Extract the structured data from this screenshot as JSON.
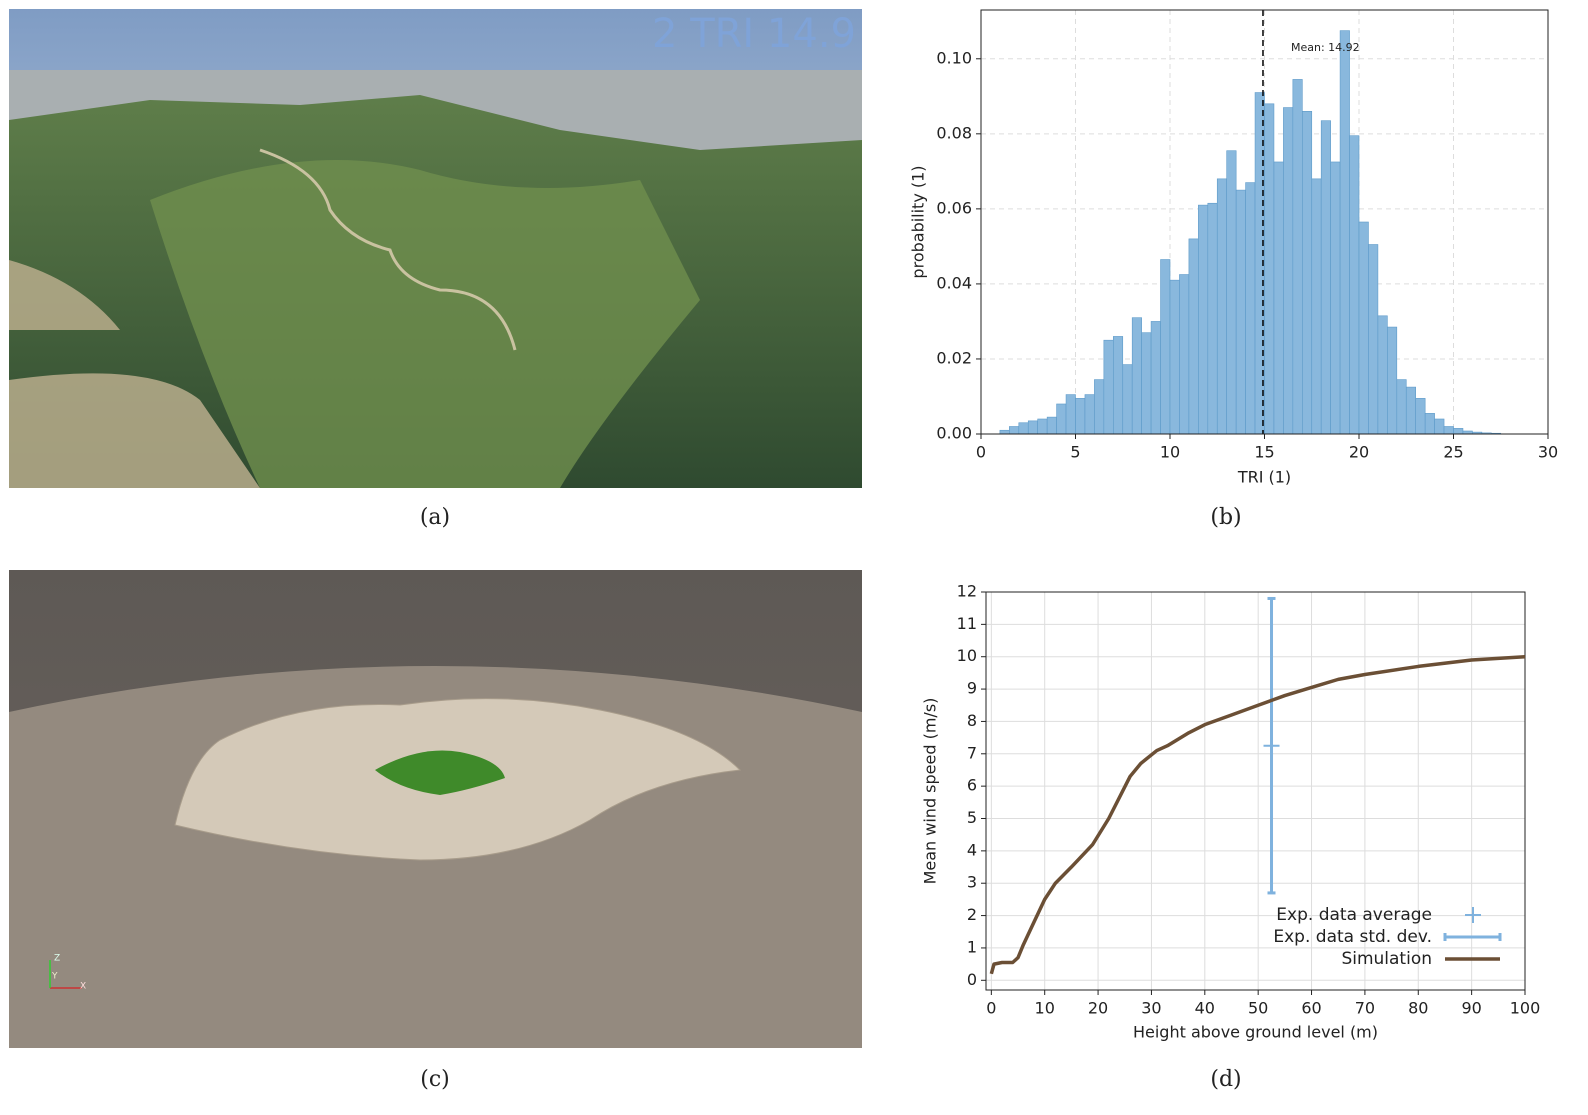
{
  "chart_data": [
    {
      "type": "histogram",
      "xlabel": "TRI (1)",
      "ylabel": "probability (1)",
      "color": "#89b8dd",
      "edgecolor": "#5d9ac9",
      "bins": [
        1.0,
        1.5,
        2.0,
        2.5,
        3.0,
        3.5,
        4.0,
        4.5,
        5.0,
        5.5,
        6.0,
        6.5,
        7.0,
        7.5,
        8.0,
        8.5,
        9.0,
        9.5,
        10.0,
        10.5,
        11.0,
        11.5,
        12.0,
        12.5,
        13.0,
        13.5,
        14.0,
        14.5,
        15.0,
        15.5,
        16.0,
        16.5,
        17.0,
        17.5,
        18.0,
        18.5,
        19.0,
        19.5,
        20.0,
        20.5,
        21.0,
        21.5,
        22.0,
        22.5,
        23.0,
        23.5,
        24.0,
        24.5,
        25.0,
        25.5,
        26.0,
        26.5,
        27.0,
        27.5
      ],
      "values": [
        0.001,
        0.002,
        0.003,
        0.0035,
        0.004,
        0.0045,
        0.008,
        0.0105,
        0.0095,
        0.0105,
        0.0145,
        0.025,
        0.026,
        0.0185,
        0.031,
        0.027,
        0.03,
        0.0465,
        0.041,
        0.0425,
        0.052,
        0.061,
        0.0615,
        0.068,
        0.0755,
        0.065,
        0.067,
        0.091,
        0.088,
        0.0725,
        0.087,
        0.0945,
        0.086,
        0.068,
        0.0835,
        0.0725,
        0.1075,
        0.0795,
        0.0565,
        0.0505,
        0.0315,
        0.0285,
        0.0145,
        0.0125,
        0.0095,
        0.0055,
        0.004,
        0.002,
        0.0015,
        0.0008,
        0.0005,
        0.0003,
        0.0002
      ],
      "mean": 14.92,
      "annotation": "Mean: 14.92",
      "xlim": [
        0,
        30
      ],
      "ylim": [
        0,
        0.113
      ],
      "xticks": [
        0,
        5,
        10,
        15,
        20,
        25,
        30
      ],
      "yticks": [
        {
          "value": 0,
          "label": "0.00"
        },
        {
          "value": 0.02,
          "label": "0.02"
        },
        {
          "value": 0.04,
          "label": "0.04"
        },
        {
          "value": 0.06,
          "label": "0.06"
        },
        {
          "value": 0.08,
          "label": "0.08"
        },
        {
          "value": 0.1,
          "label": "0.10"
        }
      ],
      "grid": true
    },
    {
      "type": "line",
      "xlabel": "Height above ground level (m)",
      "ylabel": "Mean wind speed (m/s)",
      "xlim": [
        -1,
        100
      ],
      "ylim": [
        -0.3,
        12
      ],
      "xticks": [
        0,
        10,
        20,
        30,
        40,
        50,
        60,
        70,
        80,
        90,
        100
      ],
      "yticks": [
        0,
        1,
        2,
        3,
        4,
        5,
        6,
        7,
        8,
        9,
        10,
        11,
        12
      ],
      "grid": true,
      "legend": "lower-right",
      "series": [
        {
          "name": "Exp. data average",
          "color": "#7fb2de",
          "marker": "cross",
          "x": [
            52.5
          ],
          "values": [
            7.25
          ]
        },
        {
          "name": "Exp. data std. dev.",
          "color": "#7fb2de",
          "marker": "errorbar",
          "x": [
            52.5
          ],
          "values": [
            7.25
          ],
          "errors": [
            4.55
          ]
        },
        {
          "name": "Simulation",
          "color": "#6b4f35",
          "marker": "line",
          "x": [
            0,
            0.5,
            2,
            4,
            5,
            6,
            8,
            10,
            12,
            15,
            19,
            22,
            26,
            28,
            31,
            33,
            37,
            40,
            45,
            50,
            55,
            60,
            65,
            70,
            80,
            90,
            100
          ],
          "values": [
            0.2,
            0.5,
            0.55,
            0.55,
            0.7,
            1.1,
            1.8,
            2.5,
            3.0,
            3.5,
            4.2,
            5.0,
            6.3,
            6.7,
            7.1,
            7.25,
            7.65,
            7.9,
            8.2,
            8.5,
            8.8,
            9.05,
            9.3,
            9.45,
            9.7,
            9.9,
            10.0
          ]
        }
      ]
    }
  ],
  "photo_overlay": "2 TRI 14.9",
  "render_axes": [
    "Z",
    "Y",
    "X"
  ],
  "captions": [
    "(a)",
    "(b)",
    "(c)",
    "(d)"
  ]
}
